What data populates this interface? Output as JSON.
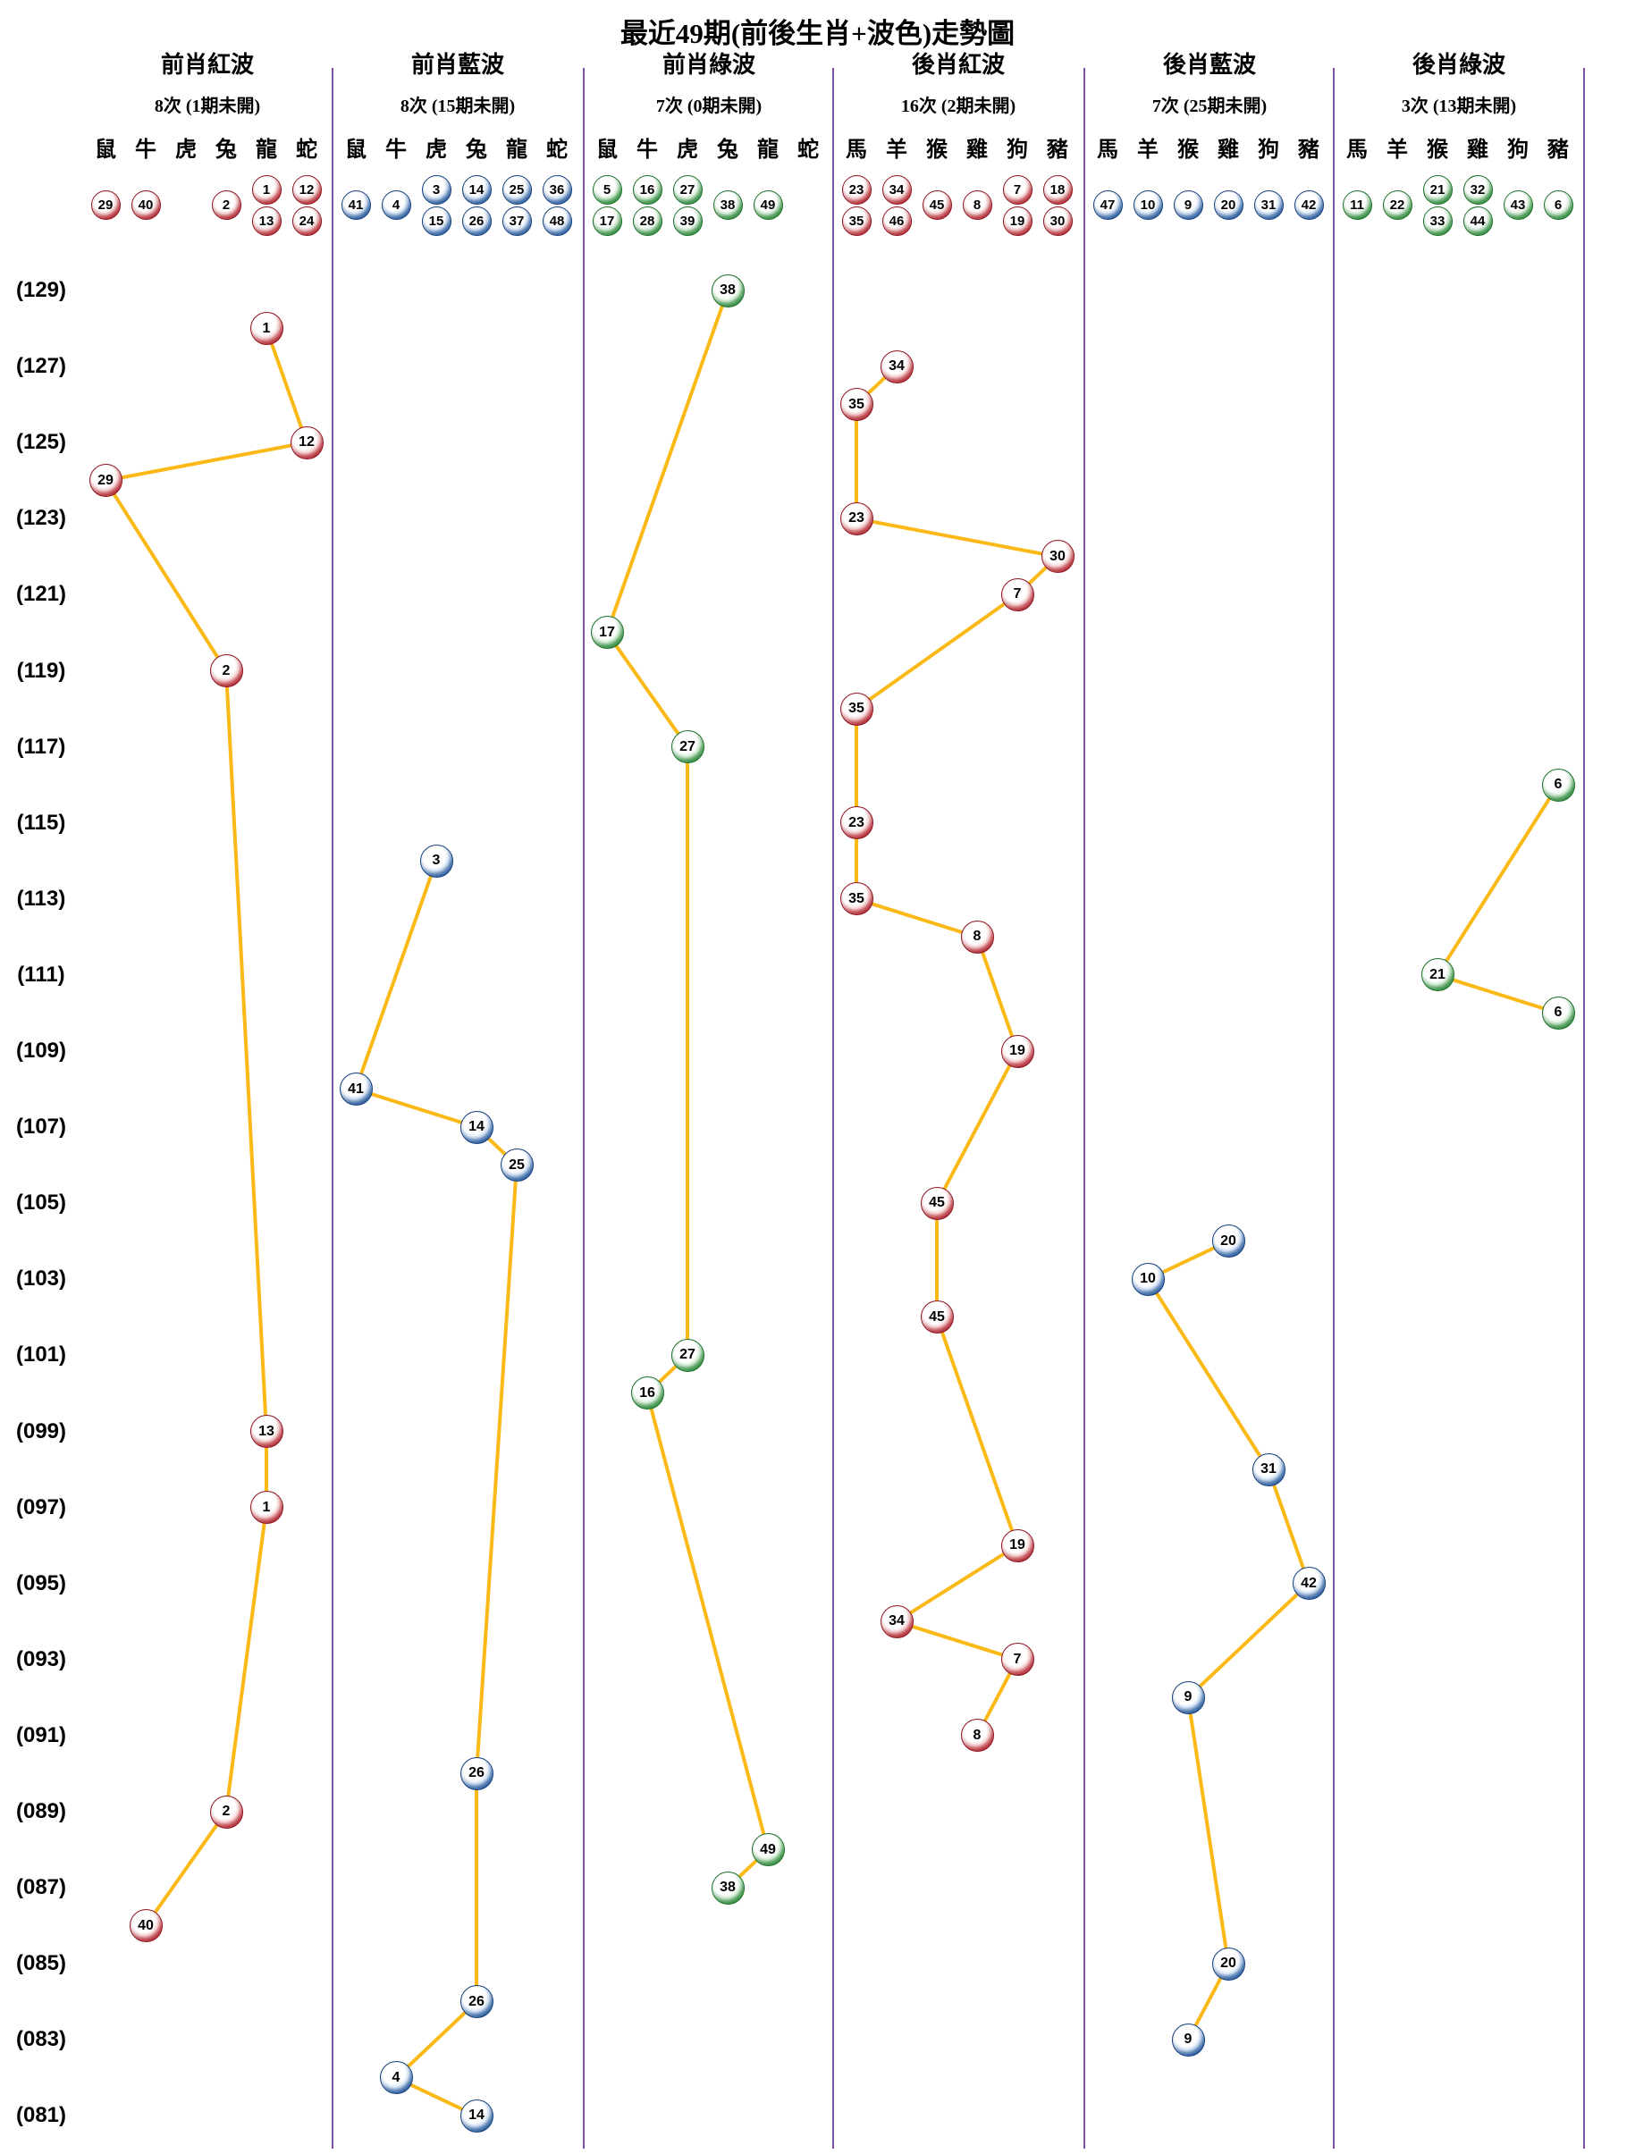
{
  "title": "最近49期(前後生肖+波色)走勢圖",
  "colors": {
    "line": "#fbb918",
    "separator": "#7b52a5",
    "red": "#c51f2e",
    "blue": "#2565b1",
    "green": "#2c9e3d"
  },
  "y_axis": {
    "labels": [
      "(129)",
      "(127)",
      "(125)",
      "(123)",
      "(121)",
      "(119)",
      "(117)",
      "(115)",
      "(113)",
      "(111)",
      "(109)",
      "(107)",
      "(105)",
      "(103)",
      "(101)",
      "(099)",
      "(097)",
      "(095)",
      "(093)",
      "(091)",
      "(089)",
      "(087)",
      "(085)",
      "(083)",
      "(081)"
    ],
    "top_period": 129,
    "bottom_period": 81
  },
  "chart_data": {
    "type": "line",
    "title": "最近49期(前後生肖+波色)走勢圖",
    "y_range": [
      81,
      129
    ],
    "grid": "off",
    "columns": [
      {
        "title": "前肖紅波",
        "count": "8次 (1期未開)",
        "color": "red",
        "zodiacs": [
          "鼠",
          "牛",
          "虎",
          "兔",
          "龍",
          "蛇"
        ],
        "header_balls": [
          [
            "29"
          ],
          [
            "40"
          ],
          [],
          [
            "2"
          ],
          [
            "1",
            "13"
          ],
          [
            "12",
            "24"
          ]
        ],
        "points": [
          {
            "num": "1",
            "zodiac": 4,
            "period": 128
          },
          {
            "num": "12",
            "zodiac": 5,
            "period": 125
          },
          {
            "num": "29",
            "zodiac": 0,
            "period": 124
          },
          {
            "num": "2",
            "zodiac": 3,
            "period": 119
          },
          {
            "num": "13",
            "zodiac": 4,
            "period": 99
          },
          {
            "num": "1",
            "zodiac": 4,
            "period": 97
          },
          {
            "num": "2",
            "zodiac": 3,
            "period": 89
          },
          {
            "num": "40",
            "zodiac": 1,
            "period": 86
          }
        ]
      },
      {
        "title": "前肖藍波",
        "count": "8次 (15期未開)",
        "color": "blue",
        "zodiacs": [
          "鼠",
          "牛",
          "虎",
          "兔",
          "龍",
          "蛇"
        ],
        "header_balls": [
          [
            "41"
          ],
          [
            "4"
          ],
          [
            "3",
            "15"
          ],
          [
            "14",
            "26"
          ],
          [
            "25",
            "37"
          ],
          [
            "36",
            "48"
          ]
        ],
        "points": [
          {
            "num": "3",
            "zodiac": 2,
            "period": 114
          },
          {
            "num": "41",
            "zodiac": 0,
            "period": 108
          },
          {
            "num": "14",
            "zodiac": 3,
            "period": 107
          },
          {
            "num": "25",
            "zodiac": 4,
            "period": 106
          },
          {
            "num": "26",
            "zodiac": 3,
            "period": 90
          },
          {
            "num": "26",
            "zodiac": 3,
            "period": 84
          },
          {
            "num": "4",
            "zodiac": 1,
            "period": 82
          },
          {
            "num": "14",
            "zodiac": 3,
            "period": 81
          }
        ]
      },
      {
        "title": "前肖綠波",
        "count": "7次 (0期未開)",
        "color": "green",
        "zodiacs": [
          "鼠",
          "牛",
          "虎",
          "兔",
          "龍",
          "蛇"
        ],
        "header_balls": [
          [
            "5",
            "17"
          ],
          [
            "16",
            "28"
          ],
          [
            "27",
            "39"
          ],
          [
            "38"
          ],
          [
            "49"
          ],
          []
        ],
        "points": [
          {
            "num": "38",
            "zodiac": 3,
            "period": 129
          },
          {
            "num": "17",
            "zodiac": 0,
            "period": 120
          },
          {
            "num": "27",
            "zodiac": 2,
            "period": 117
          },
          {
            "num": "27",
            "zodiac": 2,
            "period": 101
          },
          {
            "num": "16",
            "zodiac": 1,
            "period": 100
          },
          {
            "num": "49",
            "zodiac": 4,
            "period": 88
          },
          {
            "num": "38",
            "zodiac": 3,
            "period": 87
          }
        ]
      },
      {
        "title": "後肖紅波",
        "count": "16次 (2期未開)",
        "color": "red",
        "zodiacs": [
          "馬",
          "羊",
          "猴",
          "雞",
          "狗",
          "豬"
        ],
        "header_balls": [
          [
            "23",
            "35"
          ],
          [
            "34",
            "46"
          ],
          [
            "45"
          ],
          [
            "8"
          ],
          [
            "7",
            "19"
          ],
          [
            "18",
            "30"
          ]
        ],
        "points": [
          {
            "num": "34",
            "zodiac": 1,
            "period": 127
          },
          {
            "num": "35",
            "zodiac": 0,
            "period": 126
          },
          {
            "num": "23",
            "zodiac": 0,
            "period": 123
          },
          {
            "num": "30",
            "zodiac": 5,
            "period": 122
          },
          {
            "num": "7",
            "zodiac": 4,
            "period": 121
          },
          {
            "num": "35",
            "zodiac": 0,
            "period": 118
          },
          {
            "num": "23",
            "zodiac": 0,
            "period": 115
          },
          {
            "num": "35",
            "zodiac": 0,
            "period": 113
          },
          {
            "num": "8",
            "zodiac": 3,
            "period": 112
          },
          {
            "num": "19",
            "zodiac": 4,
            "period": 109
          },
          {
            "num": "45",
            "zodiac": 2,
            "period": 105
          },
          {
            "num": "45",
            "zodiac": 2,
            "period": 102
          },
          {
            "num": "19",
            "zodiac": 4,
            "period": 96
          },
          {
            "num": "34",
            "zodiac": 1,
            "period": 94
          },
          {
            "num": "7",
            "zodiac": 4,
            "period": 93
          },
          {
            "num": "8",
            "zodiac": 3,
            "period": 91
          }
        ]
      },
      {
        "title": "後肖藍波",
        "count": "7次 (25期未開)",
        "color": "blue",
        "zodiacs": [
          "馬",
          "羊",
          "猴",
          "雞",
          "狗",
          "豬"
        ],
        "header_balls": [
          [
            "47"
          ],
          [
            "10"
          ],
          [
            "9"
          ],
          [
            "20"
          ],
          [
            "31"
          ],
          [
            "42"
          ]
        ],
        "points": [
          {
            "num": "20",
            "zodiac": 3,
            "period": 104
          },
          {
            "num": "10",
            "zodiac": 1,
            "period": 103
          },
          {
            "num": "31",
            "zodiac": 4,
            "period": 98
          },
          {
            "num": "42",
            "zodiac": 5,
            "period": 95
          },
          {
            "num": "9",
            "zodiac": 2,
            "period": 92
          },
          {
            "num": "20",
            "zodiac": 3,
            "period": 85
          },
          {
            "num": "9",
            "zodiac": 2,
            "period": 83
          }
        ]
      },
      {
        "title": "後肖綠波",
        "count": "3次 (13期未開)",
        "color": "green",
        "zodiacs": [
          "馬",
          "羊",
          "猴",
          "雞",
          "狗",
          "豬"
        ],
        "header_balls": [
          [
            "11"
          ],
          [
            "22"
          ],
          [
            "21",
            "33"
          ],
          [
            "32",
            "44"
          ],
          [
            "43"
          ],
          [
            "6"
          ]
        ],
        "points": [
          {
            "num": "6",
            "zodiac": 5,
            "period": 116
          },
          {
            "num": "21",
            "zodiac": 2,
            "period": 111
          },
          {
            "num": "6",
            "zodiac": 5,
            "period": 110
          }
        ]
      }
    ]
  }
}
